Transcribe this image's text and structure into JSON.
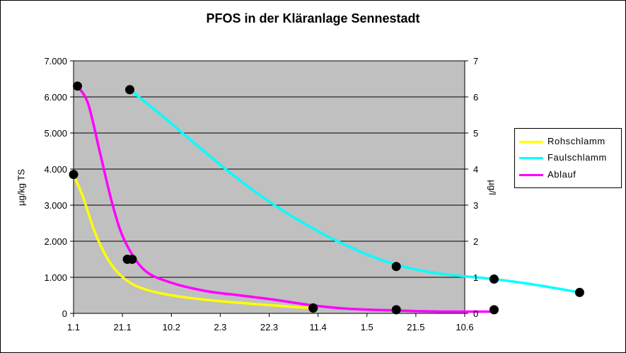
{
  "chart_data": {
    "type": "line",
    "title": "PFOS in der Kläranlage Sennestadt",
    "ylabel_left": "µg/kg TS",
    "ylabel_right": "µg/l",
    "x_tick_labels": [
      "1.1",
      "21.1",
      "10.2",
      "2.3",
      "22.3",
      "11.4",
      "1.5",
      "21.5",
      "10.6"
    ],
    "ylim_left": [
      0,
      7000
    ],
    "y_left_ticks": [
      "0",
      "1.000",
      "2.000",
      "3.000",
      "4.000",
      "5.000",
      "6.000",
      "7.000"
    ],
    "ylim_right": [
      0,
      7
    ],
    "y_right_ticks": [
      "0",
      "1",
      "2",
      "3",
      "4",
      "5",
      "6",
      "7"
    ],
    "grid": true,
    "plot_background": "#c0c0c0",
    "legend_position": "right",
    "series": [
      {
        "name": "Rohschlamm",
        "axis": "left",
        "color": "#ffff00",
        "points": [
          [
            0.0,
            3850
          ],
          [
            1.1,
            1500
          ],
          [
            4.9,
            150
          ]
        ],
        "curve": [
          [
            0.0,
            3850
          ],
          [
            0.2,
            3200
          ],
          [
            0.45,
            2200
          ],
          [
            0.75,
            1400
          ],
          [
            1.1,
            900
          ],
          [
            1.5,
            650
          ],
          [
            2.1,
            480
          ],
          [
            2.9,
            350
          ],
          [
            3.8,
            250
          ],
          [
            4.5,
            180
          ],
          [
            4.9,
            150
          ]
        ]
      },
      {
        "name": "Faulschlamm",
        "axis": "right",
        "color": "#00ffff",
        "points": [
          [
            1.15,
            6.2
          ],
          [
            6.6,
            1.3
          ],
          [
            8.6,
            0.95
          ],
          [
            10.35,
            0.58
          ]
        ],
        "curve": [
          [
            1.15,
            6.2
          ],
          [
            1.7,
            5.6
          ],
          [
            2.4,
            4.8
          ],
          [
            3.2,
            3.9
          ],
          [
            4.0,
            3.1
          ],
          [
            4.9,
            2.35
          ],
          [
            5.8,
            1.75
          ],
          [
            6.6,
            1.35
          ],
          [
            7.5,
            1.1
          ],
          [
            8.6,
            0.95
          ],
          [
            9.5,
            0.78
          ],
          [
            10.35,
            0.58
          ]
        ]
      },
      {
        "name": "Ablauf",
        "axis": "right",
        "color": "#ff00ff",
        "points": [
          [
            0.08,
            6.3
          ],
          [
            1.2,
            1.5
          ],
          [
            4.9,
            0.15
          ],
          [
            6.6,
            0.1
          ],
          [
            8.6,
            0.1
          ]
        ],
        "curve": [
          [
            0.08,
            6.3
          ],
          [
            0.3,
            5.8
          ],
          [
            0.55,
            4.4
          ],
          [
            0.8,
            3.0
          ],
          [
            1.05,
            2.0
          ],
          [
            1.45,
            1.2
          ],
          [
            2.0,
            0.85
          ],
          [
            2.7,
            0.62
          ],
          [
            3.4,
            0.5
          ],
          [
            4.1,
            0.38
          ],
          [
            4.9,
            0.22
          ],
          [
            5.6,
            0.13
          ],
          [
            6.6,
            0.08
          ],
          [
            7.5,
            0.05
          ],
          [
            8.6,
            0.05
          ]
        ]
      }
    ]
  }
}
